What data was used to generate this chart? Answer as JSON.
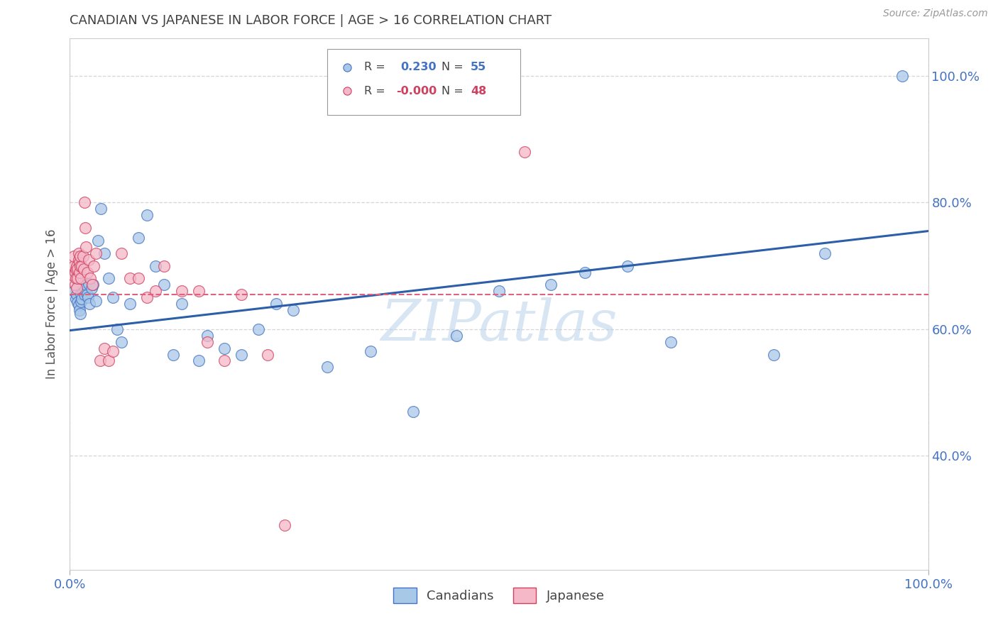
{
  "title": "CANADIAN VS JAPANESE IN LABOR FORCE | AGE > 16 CORRELATION CHART",
  "source": "Source: ZipAtlas.com",
  "ylabel": "In Labor Force | Age > 16",
  "xlim": [
    0.0,
    1.0
  ],
  "ylim": [
    0.22,
    1.06
  ],
  "yticks": [
    0.4,
    0.6,
    0.8,
    1.0
  ],
  "ytick_labels": [
    "40.0%",
    "60.0%",
    "80.0%",
    "100.0%"
  ],
  "xticks": [
    0.0,
    1.0
  ],
  "xtick_labels": [
    "0.0%",
    "100.0%"
  ],
  "canadians_x": [
    0.005,
    0.007,
    0.008,
    0.009,
    0.01,
    0.011,
    0.012,
    0.013,
    0.013,
    0.014,
    0.015,
    0.016,
    0.017,
    0.018,
    0.019,
    0.02,
    0.021,
    0.022,
    0.023,
    0.025,
    0.027,
    0.03,
    0.033,
    0.036,
    0.04,
    0.045,
    0.05,
    0.055,
    0.06,
    0.07,
    0.08,
    0.09,
    0.1,
    0.11,
    0.12,
    0.13,
    0.15,
    0.16,
    0.18,
    0.2,
    0.22,
    0.24,
    0.26,
    0.3,
    0.35,
    0.4,
    0.45,
    0.5,
    0.56,
    0.6,
    0.65,
    0.7,
    0.82,
    0.88,
    0.97
  ],
  "canadians_y": [
    0.66,
    0.648,
    0.655,
    0.642,
    0.638,
    0.63,
    0.625,
    0.643,
    0.656,
    0.648,
    0.66,
    0.668,
    0.655,
    0.663,
    0.67,
    0.655,
    0.65,
    0.672,
    0.64,
    0.665,
    0.67,
    0.645,
    0.74,
    0.79,
    0.72,
    0.68,
    0.65,
    0.6,
    0.58,
    0.64,
    0.745,
    0.78,
    0.7,
    0.67,
    0.56,
    0.64,
    0.55,
    0.59,
    0.57,
    0.56,
    0.6,
    0.64,
    0.63,
    0.54,
    0.565,
    0.47,
    0.59,
    0.66,
    0.67,
    0.69,
    0.7,
    0.58,
    0.56,
    0.72,
    1.0
  ],
  "japanese_x": [
    0.004,
    0.005,
    0.005,
    0.006,
    0.006,
    0.007,
    0.007,
    0.008,
    0.008,
    0.009,
    0.009,
    0.01,
    0.01,
    0.011,
    0.011,
    0.012,
    0.012,
    0.013,
    0.014,
    0.015,
    0.016,
    0.017,
    0.018,
    0.019,
    0.02,
    0.022,
    0.024,
    0.026,
    0.028,
    0.03,
    0.035,
    0.04,
    0.045,
    0.05,
    0.06,
    0.07,
    0.08,
    0.09,
    0.1,
    0.11,
    0.13,
    0.15,
    0.16,
    0.18,
    0.2,
    0.23,
    0.25,
    0.53
  ],
  "japanese_y": [
    0.685,
    0.7,
    0.715,
    0.69,
    0.67,
    0.68,
    0.695,
    0.665,
    0.7,
    0.68,
    0.695,
    0.71,
    0.72,
    0.705,
    0.69,
    0.7,
    0.715,
    0.68,
    0.7,
    0.715,
    0.695,
    0.8,
    0.76,
    0.73,
    0.69,
    0.71,
    0.68,
    0.67,
    0.7,
    0.72,
    0.55,
    0.57,
    0.55,
    0.565,
    0.72,
    0.68,
    0.68,
    0.65,
    0.66,
    0.7,
    0.66,
    0.66,
    0.58,
    0.55,
    0.655,
    0.56,
    0.29,
    0.88
  ],
  "canadian_fill": "#a8c8e8",
  "canadian_edge": "#4472c4",
  "japanese_fill": "#f5b8c8",
  "japanese_edge": "#d04060",
  "canadian_line_color": "#2c5fa8",
  "japanese_line_color": "#e06080",
  "r_canadian": "0.230",
  "n_canadian": "55",
  "r_japanese": "-0.000",
  "n_japanese": "48",
  "background_color": "#ffffff",
  "grid_color": "#cccccc",
  "title_color": "#404040",
  "axis_label_color": "#555555",
  "tick_label_color": "#4472c4",
  "watermark": "ZIPatlas",
  "watermark_color": "#b8d0e8"
}
